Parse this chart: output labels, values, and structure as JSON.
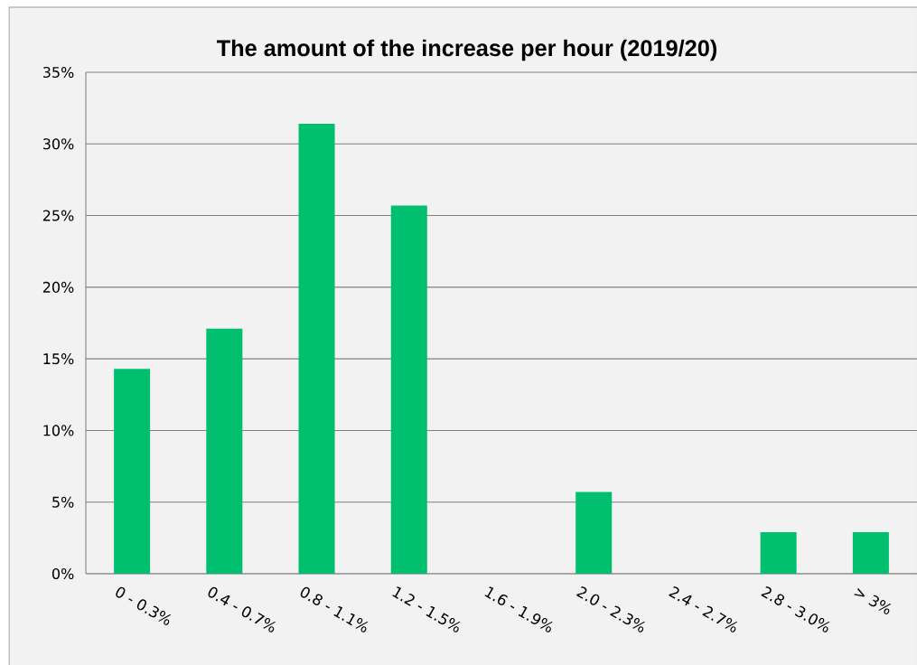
{
  "chart_data": {
    "type": "bar",
    "title": "The amount of the increase per hour (2019/20)",
    "categories": [
      "0 - 0.3%",
      "0.4 - 0.7%",
      "0.8 - 1.1%",
      "1.2 - 1.5%",
      "1.6 - 1.9%",
      "2.0 - 2.3%",
      "2.4 - 2.7%",
      "2.8 - 3.0%",
      "> 3%"
    ],
    "values": [
      14.3,
      17.1,
      31.4,
      25.7,
      0,
      5.7,
      0,
      2.9,
      2.9
    ],
    "color": "#00c070",
    "ylim": [
      0,
      35
    ],
    "yticks": [
      {
        "value": 0,
        "label": "0%"
      },
      {
        "value": 5,
        "label": "5%"
      },
      {
        "value": 10,
        "label": "10%"
      },
      {
        "value": 15,
        "label": "15%"
      },
      {
        "value": 20,
        "label": "20%"
      },
      {
        "value": 25,
        "label": "25%"
      },
      {
        "value": 30,
        "label": "30%"
      },
      {
        "value": 35,
        "label": "35%"
      }
    ],
    "grid": "y"
  }
}
